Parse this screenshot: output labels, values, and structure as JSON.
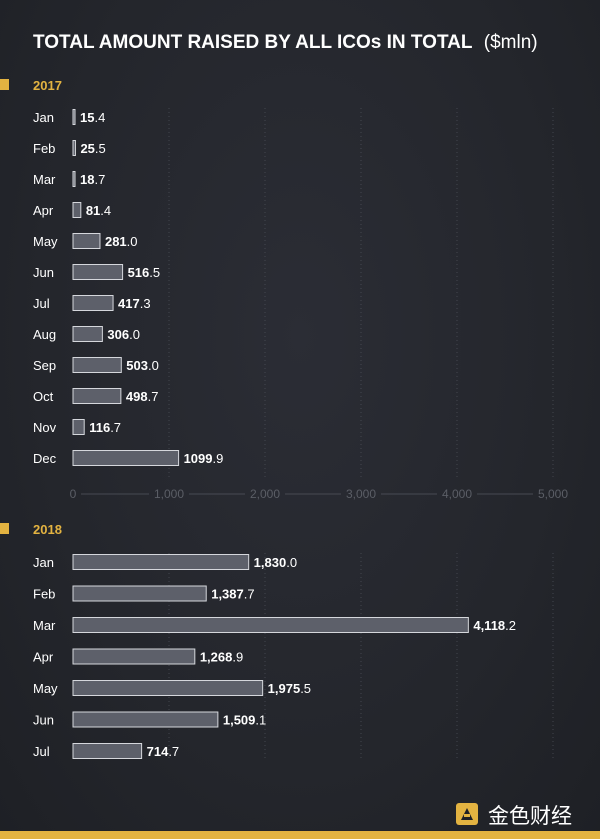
{
  "title": "TOTAL AMOUNT RAISED BY ALL ICOs IN TOTAL",
  "title_unit": "($mln)",
  "watermark": "金色财经",
  "colors": {
    "background": "#26282e",
    "accent": "#e3b341",
    "bar_fill": "#5d606a",
    "bar_stroke": "#d5d7dc",
    "text": "#ffffff",
    "grid": "#50535c",
    "axis_text": "#5b5e66"
  },
  "chart_data": [
    {
      "type": "bar",
      "orientation": "horizontal",
      "panel_label": "2017",
      "categories": [
        "Jan",
        "Feb",
        "Mar",
        "Apr",
        "May",
        "Jun",
        "Jul",
        "Aug",
        "Sep",
        "Oct",
        "Nov",
        "Dec"
      ],
      "values": [
        15.4,
        25.5,
        18.7,
        81.4,
        281.0,
        516.5,
        417.3,
        306.0,
        503.0,
        498.7,
        116.7,
        1099.9
      ],
      "labels": [
        {
          "bold": "15",
          "rest": ".4"
        },
        {
          "bold": "25",
          "rest": ".5"
        },
        {
          "bold": "18",
          "rest": ".7"
        },
        {
          "bold": "81",
          "rest": ".4"
        },
        {
          "bold": "281",
          "rest": ".0"
        },
        {
          "bold": "516",
          "rest": ".5"
        },
        {
          "bold": "417",
          "rest": ".3"
        },
        {
          "bold": "306",
          "rest": ".0"
        },
        {
          "bold": "503",
          "rest": ".0"
        },
        {
          "bold": "498",
          "rest": ".7"
        },
        {
          "bold": "116",
          "rest": ".7"
        },
        {
          "bold": "1099",
          "rest": ".9"
        }
      ],
      "xlim": [
        0,
        5000
      ],
      "xticks": [
        "0",
        "1,000",
        "2,000",
        "3,000",
        "4,000",
        "5,000"
      ],
      "grid": true
    },
    {
      "type": "bar",
      "orientation": "horizontal",
      "panel_label": "2018",
      "categories": [
        "Jan",
        "Feb",
        "Mar",
        "Apr",
        "May",
        "Jun",
        "Jul"
      ],
      "values": [
        1830.0,
        1387.7,
        4118.2,
        1268.9,
        1975.5,
        1509.1,
        714.7
      ],
      "labels": [
        {
          "bold": "1,830",
          "rest": ".0"
        },
        {
          "bold": "1,387",
          "rest": ".7"
        },
        {
          "bold": "4,118",
          "rest": ".2"
        },
        {
          "bold": "1,268",
          "rest": ".9"
        },
        {
          "bold": "1,975",
          "rest": ".5"
        },
        {
          "bold": "1,509",
          "rest": ".1"
        },
        {
          "bold": "714",
          "rest": ".7"
        }
      ],
      "xlim": [
        0,
        5000
      ],
      "grid": true
    }
  ]
}
